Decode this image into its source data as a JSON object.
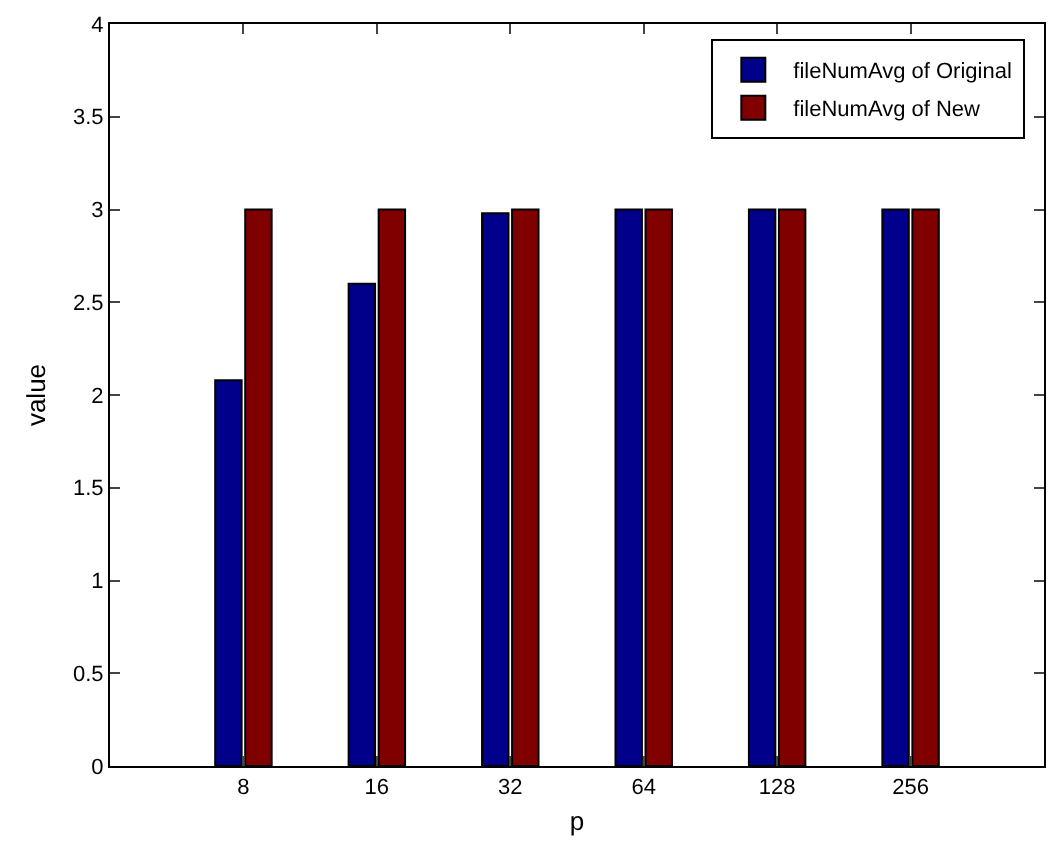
{
  "chart_data": {
    "type": "bar",
    "xlabel": "p",
    "ylabel": "value",
    "categories": [
      "8",
      "16",
      "32",
      "64",
      "128",
      "256"
    ],
    "series": [
      {
        "name": "fileNumAvg of Original",
        "color": "#00008b",
        "values": [
          2.08,
          2.6,
          2.98,
          3,
          3,
          3
        ]
      },
      {
        "name": "fileNumAvg of New",
        "color": "#800000",
        "values": [
          3,
          3,
          3,
          3,
          3,
          3
        ]
      }
    ],
    "ylim": [
      0,
      4
    ],
    "yticks": [
      0,
      0.5,
      1,
      1.5,
      2,
      2.5,
      3,
      3.5,
      4
    ],
    "grid": false,
    "legend": "top right"
  }
}
